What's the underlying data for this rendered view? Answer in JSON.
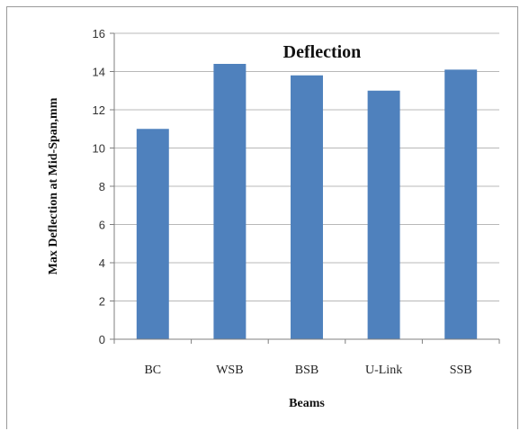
{
  "chart_data": {
    "type": "bar",
    "title": "Deflection",
    "xlabel": "Beams",
    "ylabel": "Max Deflection at Mid-Span,mm",
    "categories": [
      "BC",
      "WSB",
      "BSB",
      "U-Link",
      "SSB"
    ],
    "values": [
      11.0,
      14.4,
      13.8,
      13.0,
      14.1
    ],
    "ylim": [
      0,
      16
    ],
    "yticks": [
      "0",
      "2",
      "4",
      "6",
      "8",
      "10",
      "12",
      "14",
      "16"
    ],
    "grid": true,
    "legend": "none",
    "bar_color": "#4F81BD",
    "grid_color": "#b8b8b8"
  }
}
